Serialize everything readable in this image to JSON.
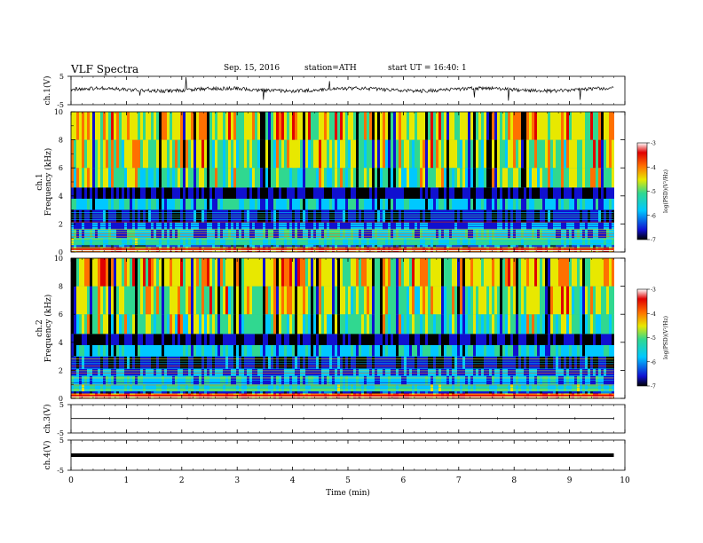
{
  "header": {
    "title": "VLF  Spectra",
    "date": "Sep. 15, 2016",
    "station": "station=ATH",
    "start_ut": "start  UT  =   16:40: 1"
  },
  "chart_data": [
    {
      "type": "line",
      "panel": "ch1-waveform",
      "ylabel": "ch.1(V)",
      "ylim": [
        -5,
        5
      ],
      "yticks": [
        "5",
        "-5"
      ],
      "baseline": 0.3
    },
    {
      "type": "heatmap",
      "panel": "ch1-spectrogram",
      "ylabel": [
        "ch.1",
        "Frequency (kHz)"
      ],
      "ylim": [
        0,
        10
      ],
      "yticks": [
        "0",
        "2",
        "4",
        "6",
        "8",
        "10"
      ],
      "colorbar": {
        "label": "log(PSD)(V²/Hz)",
        "range": [
          -7,
          -3
        ],
        "ticks": [
          "-3",
          "-4",
          "-5",
          "-6",
          "-7"
        ]
      }
    },
    {
      "type": "heatmap",
      "panel": "ch2-spectrogram",
      "ylabel": [
        "ch.2",
        "Frequency (kHz)"
      ],
      "ylim": [
        0,
        10
      ],
      "yticks": [
        "0",
        "2",
        "4",
        "6",
        "8",
        "10"
      ],
      "colorbar": {
        "label": "log(PSD)(V²/Hz)",
        "range": [
          -7,
          -3
        ],
        "ticks": [
          "-3",
          "-4",
          "-5",
          "-6",
          "-7"
        ]
      }
    },
    {
      "type": "line",
      "panel": "ch3-waveform",
      "ylabel": "ch.3(V)",
      "ylim": [
        -5,
        5
      ],
      "yticks": [
        "5",
        "-5"
      ],
      "baseline": 0.1
    },
    {
      "type": "line",
      "panel": "ch4-waveform",
      "ylabel": "ch.4(V)",
      "ylim": [
        -5,
        5
      ],
      "yticks": [
        "5",
        "-5"
      ],
      "baseline": 0
    }
  ],
  "xaxis": {
    "label": "Time  (min)",
    "range": [
      0,
      10
    ],
    "data_end": 9.8,
    "ticks": [
      "0",
      "1",
      "2",
      "3",
      "4",
      "5",
      "6",
      "7",
      "8",
      "9",
      "10"
    ]
  },
  "colors": {
    "ink": "#000000",
    "colormap": [
      "#000000",
      "#1010d0",
      "#00c8ff",
      "#30d890",
      "#e8e800",
      "#ff7000",
      "#e00000",
      "#ffffff"
    ]
  }
}
